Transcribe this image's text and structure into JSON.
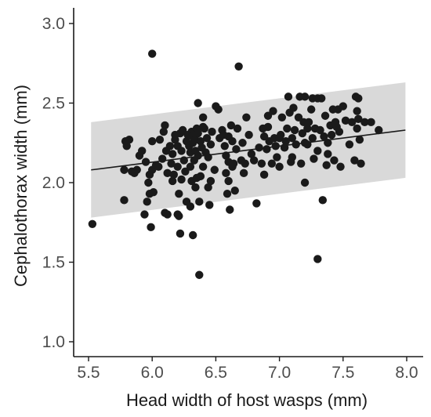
{
  "chart_data": {
    "type": "scatter",
    "title": "",
    "xlabel": "Head width of host wasps (mm)",
    "ylabel": "Cephalothorax width (mm)",
    "xlim": [
      5.5,
      8.0
    ],
    "ylim": [
      1.0,
      3.0
    ],
    "x_ticks": [
      "5.5",
      "6.0",
      "6.5",
      "7.0",
      "7.5",
      "8.0"
    ],
    "y_ticks": [
      "1.0",
      "1.5",
      "2.0",
      "2.5",
      "3.0"
    ],
    "grid": false,
    "legend": "none",
    "colors": {
      "points": "#1a1a1a",
      "band": "#d9d9d9",
      "line": "#1a1a1a",
      "axis": "#1a1a1a"
    },
    "fit_line": {
      "x": [
        5.52,
        7.99
      ],
      "y": [
        2.08,
        2.33
      ]
    },
    "confidence_band": {
      "x": [
        5.52,
        7.99
      ],
      "upper": [
        2.38,
        2.63
      ],
      "lower": [
        1.78,
        2.03
      ]
    },
    "points": [
      [
        5.53,
        1.74
      ],
      [
        5.78,
        1.89
      ],
      [
        5.78,
        2.08
      ],
      [
        5.79,
        2.26
      ],
      [
        5.8,
        2.23
      ],
      [
        5.82,
        2.27
      ],
      [
        5.84,
        2.07
      ],
      [
        5.86,
        2.06
      ],
      [
        5.88,
        2.08
      ],
      [
        5.9,
        2.17
      ],
      [
        5.92,
        2.2
      ],
      [
        5.94,
        1.8
      ],
      [
        5.95,
        2.13
      ],
      [
        5.96,
        1.88
      ],
      [
        5.97,
        2.0
      ],
      [
        5.98,
        2.05
      ],
      [
        5.98,
        1.93
      ],
      [
        5.99,
        1.72
      ],
      [
        6.0,
        2.81
      ],
      [
        6.0,
        2.26
      ],
      [
        6.0,
        2.08
      ],
      [
        6.01,
        1.94
      ],
      [
        6.03,
        2.11
      ],
      [
        6.05,
        2.1
      ],
      [
        6.06,
        2.27
      ],
      [
        6.08,
        2.15
      ],
      [
        6.09,
        2.32
      ],
      [
        6.1,
        2.36
      ],
      [
        6.1,
        1.81
      ],
      [
        6.11,
        2.2
      ],
      [
        6.12,
        2.06
      ],
      [
        6.12,
        1.8
      ],
      [
        6.14,
        2.23
      ],
      [
        6.15,
        2.12
      ],
      [
        6.16,
        2.18
      ],
      [
        6.16,
        2.01
      ],
      [
        6.17,
        2.05
      ],
      [
        6.18,
        2.3
      ],
      [
        6.18,
        2.27
      ],
      [
        6.2,
        2.23
      ],
      [
        6.2,
        2.1
      ],
      [
        6.2,
        1.8
      ],
      [
        6.21,
        1.93
      ],
      [
        6.21,
        1.79
      ],
      [
        6.22,
        2.31
      ],
      [
        6.22,
        1.68
      ],
      [
        6.23,
        2.2
      ],
      [
        6.23,
        2.02
      ],
      [
        6.24,
        2.33
      ],
      [
        6.25,
        2.14
      ],
      [
        6.26,
        2.07
      ],
      [
        6.27,
        2.26
      ],
      [
        6.27,
        1.88
      ],
      [
        6.28,
        2.3
      ],
      [
        6.29,
        2.23
      ],
      [
        6.3,
        2.19
      ],
      [
        6.3,
        2.1
      ],
      [
        6.3,
        1.85
      ],
      [
        6.31,
        2.32
      ],
      [
        6.31,
        2.01
      ],
      [
        6.32,
        2.29
      ],
      [
        6.32,
        2.25
      ],
      [
        6.32,
        1.67
      ],
      [
        6.33,
        2.14
      ],
      [
        6.34,
        2.2
      ],
      [
        6.34,
        2.27
      ],
      [
        6.34,
        1.97
      ],
      [
        6.35,
        2.34
      ],
      [
        6.35,
        2.03
      ],
      [
        6.36,
        2.5
      ],
      [
        6.36,
        2.31
      ],
      [
        6.36,
        2.17
      ],
      [
        6.37,
        1.88
      ],
      [
        6.37,
        1.42
      ],
      [
        6.38,
        2.26
      ],
      [
        6.38,
        2.04
      ],
      [
        6.39,
        2.22
      ],
      [
        6.4,
        2.35
      ],
      [
        6.4,
        2.1
      ],
      [
        6.4,
        2.41
      ],
      [
        6.41,
        2.34
      ],
      [
        6.42,
        2.19
      ],
      [
        6.43,
        2.28
      ],
      [
        6.44,
        2.16
      ],
      [
        6.44,
        1.97
      ],
      [
        6.45,
        1.86
      ],
      [
        6.46,
        2.24
      ],
      [
        6.46,
        2.01
      ],
      [
        6.47,
        2.32
      ],
      [
        6.49,
        2.08
      ],
      [
        6.5,
        2.48
      ],
      [
        6.52,
        2.46
      ],
      [
        6.53,
        2.28
      ],
      [
        6.55,
        2.33
      ],
      [
        6.56,
        2.3
      ],
      [
        6.57,
        2.23
      ],
      [
        6.58,
        2.17
      ],
      [
        6.58,
        2.06
      ],
      [
        6.59,
        1.93
      ],
      [
        6.6,
        2.29
      ],
      [
        6.6,
        2.13
      ],
      [
        6.6,
        2.01
      ],
      [
        6.61,
        1.83
      ],
      [
        6.62,
        2.36
      ],
      [
        6.63,
        2.26
      ],
      [
        6.63,
        2.1
      ],
      [
        6.64,
        2.12
      ],
      [
        6.65,
        1.95
      ],
      [
        6.66,
        2.21
      ],
      [
        6.67,
        2.34
      ],
      [
        6.68,
        2.73
      ],
      [
        6.7,
        2.14
      ],
      [
        6.71,
        2.25
      ],
      [
        6.72,
        2.06
      ],
      [
        6.73,
        2.12
      ],
      [
        6.74,
        2.41
      ],
      [
        6.76,
        2.3
      ],
      [
        6.78,
        2.18
      ],
      [
        6.8,
        2.14
      ],
      [
        6.82,
        1.87
      ],
      [
        6.84,
        2.22
      ],
      [
        6.86,
        2.12
      ],
      [
        6.87,
        2.34
      ],
      [
        6.88,
        2.29
      ],
      [
        6.88,
        2.05
      ],
      [
        6.9,
        2.21
      ],
      [
        6.91,
        2.35
      ],
      [
        6.91,
        2.42
      ],
      [
        6.92,
        2.26
      ],
      [
        6.94,
        2.12
      ],
      [
        6.95,
        2.45
      ],
      [
        6.96,
        2.28
      ],
      [
        6.97,
        2.23
      ],
      [
        6.98,
        2.16
      ],
      [
        7.0,
        2.28
      ],
      [
        7.0,
        2.1
      ],
      [
        7.01,
        2.3
      ],
      [
        7.02,
        2.41
      ],
      [
        7.04,
        2.22
      ],
      [
        7.05,
        2.26
      ],
      [
        7.06,
        2.34
      ],
      [
        7.07,
        2.54
      ],
      [
        7.08,
        2.44
      ],
      [
        7.09,
        2.13
      ],
      [
        7.1,
        2.28
      ],
      [
        7.1,
        2.16
      ],
      [
        7.11,
        2.47
      ],
      [
        7.12,
        2.33
      ],
      [
        7.13,
        2.24
      ],
      [
        7.15,
        2.41
      ],
      [
        7.16,
        2.54
      ],
      [
        7.17,
        2.12
      ],
      [
        7.18,
        2.31
      ],
      [
        7.19,
        2.38
      ],
      [
        7.2,
        2.25
      ],
      [
        7.2,
        2.54
      ],
      [
        7.2,
        2.0
      ],
      [
        7.22,
        2.34
      ],
      [
        7.22,
        2.24
      ],
      [
        7.23,
        2.38
      ],
      [
        7.25,
        2.46
      ],
      [
        7.26,
        2.28
      ],
      [
        7.26,
        2.53
      ],
      [
        7.27,
        2.15
      ],
      [
        7.28,
        2.34
      ],
      [
        7.3,
        1.52
      ],
      [
        7.3,
        2.2
      ],
      [
        7.3,
        2.53
      ],
      [
        7.32,
        2.33
      ],
      [
        7.33,
        2.53
      ],
      [
        7.34,
        1.89
      ],
      [
        7.35,
        2.29
      ],
      [
        7.36,
        2.42
      ],
      [
        7.37,
        2.11
      ],
      [
        7.38,
        2.25
      ],
      [
        7.38,
        2.18
      ],
      [
        7.4,
        2.36
      ],
      [
        7.41,
        2.3
      ],
      [
        7.42,
        2.46
      ],
      [
        7.43,
        2.14
      ],
      [
        7.44,
        2.38
      ],
      [
        7.45,
        2.35
      ],
      [
        7.46,
        2.46
      ],
      [
        7.47,
        2.32
      ],
      [
        7.48,
        2.1
      ],
      [
        7.5,
        2.48
      ],
      [
        7.52,
        2.39
      ],
      [
        7.55,
        2.24
      ],
      [
        7.57,
        2.38
      ],
      [
        7.59,
        2.14
      ],
      [
        7.6,
        2.54
      ],
      [
        7.61,
        2.45
      ],
      [
        7.61,
        2.34
      ],
      [
        7.62,
        2.53
      ],
      [
        7.62,
        2.4
      ],
      [
        7.63,
        2.27
      ],
      [
        7.64,
        2.12
      ],
      [
        7.67,
        2.38
      ],
      [
        7.72,
        2.38
      ],
      [
        7.78,
        2.33
      ]
    ]
  }
}
